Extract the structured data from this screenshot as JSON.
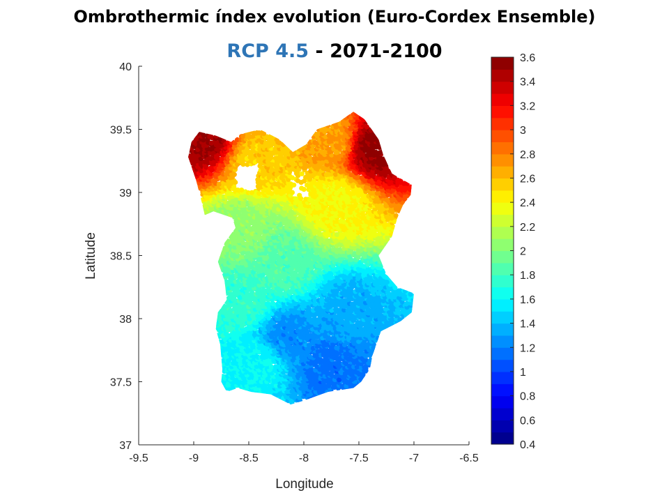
{
  "title": "Ombrothermic índex evolution (Euro-Cordex Ensemble)",
  "subtitle": {
    "scenario": "RCP 4.5",
    "separator": "-",
    "period": "2071-2100"
  },
  "chart_data": {
    "type": "scatter",
    "xlabel": "Longitude",
    "ylabel": "Latitude",
    "xlim": [
      -9.5,
      -6.5
    ],
    "ylim": [
      37,
      40
    ],
    "xticks": [
      -9.5,
      -9,
      -8.5,
      -8,
      -7.5,
      -7,
      -6.5
    ],
    "xtick_labels": [
      "-9.5",
      "-9",
      "-8.5",
      "-8",
      "-7.5",
      "-7",
      "-6.5"
    ],
    "yticks": [
      37,
      37.5,
      38,
      38.5,
      39,
      39.5,
      40
    ],
    "ytick_labels": [
      "37",
      "37.5",
      "38",
      "38.5",
      "39",
      "39.5",
      "40"
    ],
    "colormap": "jet",
    "color_range": [
      0.4,
      3.6
    ],
    "colorbar_ticks": [
      0.4,
      0.6,
      0.8,
      1,
      1.2,
      1.4,
      1.6,
      1.8,
      2,
      2.2,
      2.4,
      2.6,
      2.8,
      3,
      3.2,
      3.4,
      3.6
    ],
    "colorbar_tick_labels": [
      "0.4",
      "0.6",
      "0.8",
      "1",
      "1.2",
      "1.4",
      "1.6",
      "1.8",
      "2",
      "2.2",
      "2.4",
      "2.6",
      "2.8",
      "3",
      "3.2",
      "3.4",
      "3.6"
    ],
    "grid": false,
    "region_outline": [
      [
        -9.05,
        39.28
      ],
      [
        -9.02,
        39.4
      ],
      [
        -8.95,
        39.48
      ],
      [
        -8.8,
        39.45
      ],
      [
        -8.66,
        39.4
      ],
      [
        -8.58,
        39.46
      ],
      [
        -8.4,
        39.5
      ],
      [
        -8.22,
        39.42
      ],
      [
        -8.1,
        39.32
      ],
      [
        -7.98,
        39.38
      ],
      [
        -7.88,
        39.5
      ],
      [
        -7.68,
        39.56
      ],
      [
        -7.55,
        39.64
      ],
      [
        -7.45,
        39.58
      ],
      [
        -7.32,
        39.42
      ],
      [
        -7.28,
        39.3
      ],
      [
        -7.2,
        39.15
      ],
      [
        -7.02,
        39.06
      ],
      [
        -7.03,
        38.98
      ],
      [
        -7.1,
        38.9
      ],
      [
        -7.15,
        38.8
      ],
      [
        -7.2,
        38.65
      ],
      [
        -7.32,
        38.5
      ],
      [
        -7.25,
        38.35
      ],
      [
        -7.15,
        38.25
      ],
      [
        -7.0,
        38.2
      ],
      [
        -7.02,
        38.05
      ],
      [
        -7.12,
        37.98
      ],
      [
        -7.3,
        37.9
      ],
      [
        -7.38,
        37.7
      ],
      [
        -7.4,
        37.6
      ],
      [
        -7.48,
        37.5
      ],
      [
        -7.55,
        37.45
      ],
      [
        -7.78,
        37.42
      ],
      [
        -8.0,
        37.35
      ],
      [
        -8.12,
        37.32
      ],
      [
        -8.3,
        37.4
      ],
      [
        -8.48,
        37.42
      ],
      [
        -8.6,
        37.45
      ],
      [
        -8.7,
        37.42
      ],
      [
        -8.75,
        37.5
      ],
      [
        -8.74,
        37.6
      ],
      [
        -8.76,
        37.8
      ],
      [
        -8.8,
        37.92
      ],
      [
        -8.78,
        38.05
      ],
      [
        -8.7,
        38.15
      ],
      [
        -8.72,
        38.3
      ],
      [
        -8.78,
        38.45
      ],
      [
        -8.72,
        38.6
      ],
      [
        -8.62,
        38.72
      ],
      [
        -8.65,
        38.8
      ],
      [
        -8.82,
        38.85
      ],
      [
        -8.9,
        38.82
      ],
      [
        -8.92,
        38.9
      ],
      [
        -8.95,
        39.0
      ],
      [
        -8.98,
        39.1
      ]
    ],
    "marker_color_stops": [
      {
        "value": 1.15,
        "lon": -7.75,
        "lat": 37.62
      },
      {
        "value": 1.25,
        "lon": -8.15,
        "lat": 37.85
      },
      {
        "value": 1.35,
        "lon": -7.6,
        "lat": 38.05
      },
      {
        "value": 1.6,
        "lon": -8.4,
        "lat": 37.65
      },
      {
        "value": 1.75,
        "lon": -8.55,
        "lat": 38.15
      },
      {
        "value": 1.85,
        "lon": -8.2,
        "lat": 38.45
      },
      {
        "value": 2.05,
        "lon": -8.55,
        "lat": 38.7
      },
      {
        "value": 2.4,
        "lon": -7.7,
        "lat": 38.92
      },
      {
        "value": 2.55,
        "lon": -8.4,
        "lat": 39.25
      },
      {
        "value": 3.5,
        "lon": -8.92,
        "lat": 39.44
      },
      {
        "value": 3.55,
        "lon": -7.35,
        "lat": 39.36
      },
      {
        "value": 2.7,
        "lon": -7.75,
        "lat": 39.42
      }
    ]
  }
}
